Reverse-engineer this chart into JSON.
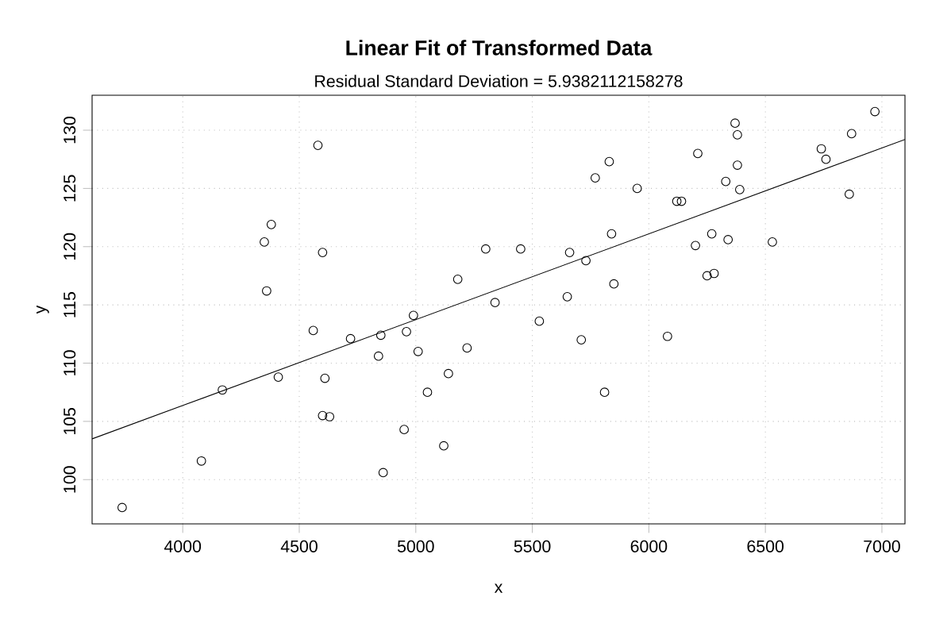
{
  "chart_data": {
    "type": "scatter",
    "title": "Linear Fit of Transformed Data",
    "subtitle": "Residual Standard Deviation =  5.9382112158278",
    "xlabel": "x",
    "ylabel": "y",
    "series": [
      {
        "color": "#000000",
        "marker": "circle",
        "x": [
          3740,
          4080,
          4170,
          4350,
          4360,
          4380,
          4410,
          4560,
          4580,
          4600,
          4600,
          4610,
          4630,
          4720,
          4840,
          4850,
          4860,
          4950,
          4960,
          4990,
          5010,
          5050,
          5120,
          5140,
          5180,
          5220,
          5300,
          5340,
          5450,
          5530,
          5650,
          5660,
          5710,
          5730,
          5770,
          5810,
          5830,
          5840,
          5850,
          5950,
          6080,
          6120,
          6140,
          6200,
          6210,
          6250,
          6270,
          6280,
          6330,
          6340,
          6370,
          6380,
          6380,
          6390,
          6530,
          6740,
          6760,
          6860,
          6870,
          6970
        ],
        "values": [
          97.6,
          101.6,
          107.7,
          120.4,
          116.2,
          121.9,
          108.8,
          112.8,
          128.7,
          119.5,
          105.5,
          108.7,
          105.4,
          112.1,
          110.6,
          112.4,
          100.6,
          104.3,
          112.7,
          114.1,
          111.0,
          107.5,
          102.9,
          109.1,
          117.2,
          111.3,
          119.8,
          115.2,
          119.8,
          113.6,
          115.7,
          119.5,
          112.0,
          118.8,
          125.9,
          107.5,
          127.3,
          121.1,
          116.8,
          125.0,
          112.3,
          123.9,
          123.9,
          120.1,
          128.0,
          117.5,
          121.1,
          117.7,
          125.6,
          120.6,
          130.6,
          129.6,
          127.0,
          124.9,
          120.4,
          128.4,
          127.5,
          124.5,
          129.7,
          131.6
        ]
      },
      {
        "type": "line",
        "color": "#000000",
        "marker": "none",
        "x": [
          3611,
          7099
        ],
        "values": [
          103.5,
          129.2
        ]
      }
    ],
    "xlim": [
      3611,
      7099
    ],
    "ylim": [
      96.2,
      133.0
    ],
    "xticks": [
      4000,
      4500,
      5000,
      5500,
      6000,
      6500,
      7000
    ],
    "yticks": [
      100,
      105,
      110,
      115,
      120,
      125,
      130
    ],
    "grid": true,
    "line_style": "solid"
  }
}
